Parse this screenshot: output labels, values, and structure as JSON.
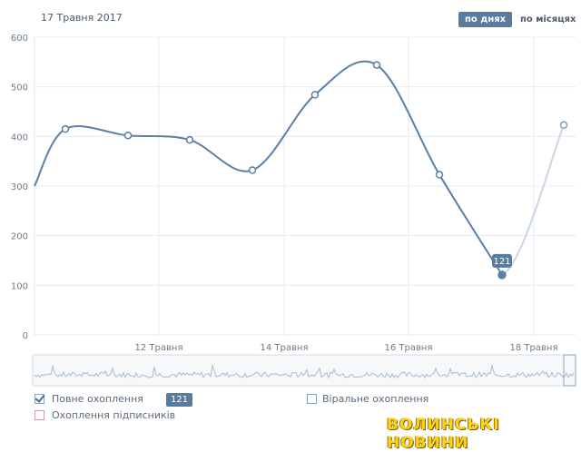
{
  "header": {
    "date": "17 Травня 2017",
    "by_days_label": "по днях",
    "by_months_label": "по місяцях"
  },
  "colors": {
    "line": "#5b7fa6",
    "line_faded": "#c9d6e3",
    "grid": "#e7ecf1",
    "accent": "#577ca1"
  },
  "chart_data": {
    "type": "line",
    "y_ticks": [
      "600",
      "500",
      "400",
      "300",
      "200",
      "100",
      "0"
    ],
    "x_ticks": [
      "12 Травня",
      "14 Травня",
      "16 Травня",
      "18 Травня"
    ],
    "ylim": [
      0,
      600
    ],
    "series": [
      {
        "name": "Повне охоплення",
        "values": [
          300,
          415,
          402,
          393,
          332,
          484,
          544,
          323,
          121,
          423
        ]
      }
    ],
    "highlight": {
      "label": "121"
    }
  },
  "legend": {
    "full_reach": "Повне охоплення",
    "viral_reach": "Віральне охоплення",
    "subscriber_reach": "Охоплення підписників",
    "selected_value": "121"
  },
  "watermark": "ВОЛИНСЬКІ НОВИНИ"
}
